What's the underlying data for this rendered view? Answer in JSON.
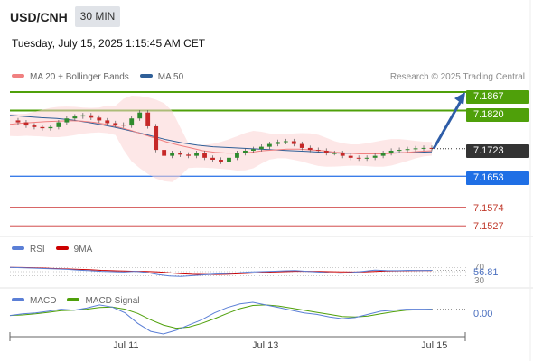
{
  "header": {
    "symbol": "USD/CNH",
    "timeframe": "30 MIN",
    "datetime": "Tuesday, July 15, 2025 1:15:45 AM CET"
  },
  "legend": {
    "ma20_bb_label": "MA 20 + Bollinger Bands",
    "ma20_bb_color": "#f08080",
    "ma50_label": "MA 50",
    "ma50_color": "#2f5f98"
  },
  "credit": "Research © 2025 Trading Central",
  "chart_data": {
    "type": "line",
    "price_range": [
      7.15,
      7.189
    ],
    "current_price": "7.1723",
    "levels": [
      {
        "value": "7.1867",
        "color": "#4fa00a",
        "kind": "target"
      },
      {
        "value": "7.1820",
        "color": "#4fa00a",
        "kind": "target"
      },
      {
        "value": "7.1653",
        "color": "#3b7de9",
        "kind": "pivot"
      },
      {
        "value": "7.1574",
        "color": "#cc3333",
        "kind": "support"
      },
      {
        "value": "7.1527",
        "color": "#cc3333",
        "kind": "support"
      }
    ],
    "x_ticks": [
      "Jul 11",
      "Jul 13",
      "Jul 15"
    ],
    "price_closes": [
      7.1795,
      7.179,
      7.1782,
      7.1778,
      7.1775,
      7.1778,
      7.179,
      7.18,
      7.1805,
      7.1808,
      7.1802,
      7.1795,
      7.1788,
      7.1784,
      7.1782,
      7.18,
      7.1815,
      7.178,
      7.172,
      7.1705,
      7.1712,
      7.1708,
      7.1705,
      7.1712,
      7.17,
      7.1695,
      7.169,
      7.17,
      7.1712,
      7.1718,
      7.1722,
      7.1728,
      7.1735,
      7.174,
      7.1742,
      7.1735,
      7.1725,
      7.172,
      7.1718,
      7.1712,
      7.1712,
      7.1705,
      7.17,
      7.1698,
      7.17,
      7.1705,
      7.1712,
      7.1718,
      7.172,
      7.1722,
      7.1724,
      7.1725,
      7.1723
    ],
    "ma20": [
      7.1785,
      7.1788,
      7.179,
      7.1792,
      7.1793,
      7.1794,
      7.1793,
      7.179,
      7.1785,
      7.1778,
      7.177,
      7.176,
      7.175,
      7.174,
      7.1732,
      7.1725,
      7.1718,
      7.1714,
      7.1712,
      7.1712,
      7.1714,
      7.1718,
      7.172,
      7.1722,
      7.1722,
      7.172,
      7.1718,
      7.1714,
      7.1712,
      7.171,
      7.171,
      7.171,
      7.1712,
      7.1714,
      7.1716,
      7.1718
    ],
    "ma50": [
      7.1808,
      7.1805,
      7.1802,
      7.18,
      7.1796,
      7.179,
      7.1783,
      7.1775,
      7.1766,
      7.1756,
      7.1746,
      7.1738,
      7.1732,
      7.1728,
      7.1726,
      7.1724,
      7.1722,
      7.172,
      7.1718,
      7.1716,
      7.1714,
      7.1712,
      7.1711,
      7.1711,
      7.1712,
      7.1713,
      7.1714,
      7.1715
    ],
    "rsi": {
      "label": "RSI",
      "color": "#5b7fd6",
      "ma_label": "9MA",
      "ma_color": "#cc0000",
      "current_value": "56.81",
      "levels": [
        "70",
        "30"
      ],
      "values": [
        72,
        70,
        68,
        66,
        64,
        62,
        58,
        55,
        52,
        50,
        48,
        52,
        46,
        35,
        28,
        26,
        30,
        34,
        38,
        40,
        44,
        48,
        50,
        52,
        54,
        56,
        52,
        48,
        44,
        42,
        46,
        52,
        58,
        56,
        55,
        57,
        56,
        56.81
      ],
      "ma_values": [
        72,
        71,
        70,
        68,
        66,
        64,
        62,
        60,
        57,
        55,
        53,
        52,
        51,
        49,
        44,
        40,
        37,
        36,
        36,
        37,
        39,
        42,
        45,
        48,
        50,
        52,
        52,
        51,
        50,
        49,
        48,
        49,
        51,
        53,
        54,
        55,
        56,
        56
      ]
    },
    "macd": {
      "label": "MACD",
      "color": "#5b7fd6",
      "signal_label": "MACD Signal",
      "signal_color": "#4fa00a",
      "current_value": "0.00",
      "values": [
        0.0,
        0.0003,
        0.0005,
        0.0008,
        0.0012,
        0.001,
        0.0014,
        0.002,
        0.0016,
        0.0005,
        -0.0015,
        -0.003,
        -0.0035,
        -0.0028,
        -0.0018,
        -0.0008,
        0.0005,
        0.0015,
        0.0022,
        0.0025,
        0.002,
        0.0015,
        0.001,
        0.0005,
        0.0002,
        -0.0003,
        -0.0006,
        -0.0004,
        0.0002,
        0.0008,
        0.001,
        0.0012,
        0.0012,
        0.0012
      ],
      "signal_values": [
        0.0,
        0.0001,
        0.0003,
        0.0006,
        0.0009,
        0.001,
        0.0012,
        0.0015,
        0.0016,
        0.0012,
        0.0004,
        -0.0008,
        -0.0018,
        -0.0024,
        -0.0022,
        -0.0015,
        -0.0006,
        0.0004,
        0.0013,
        0.0019,
        0.002,
        0.0018,
        0.0014,
        0.001,
        0.0006,
        0.0002,
        -0.0002,
        -0.0003,
        -0.0001,
        0.0003,
        0.0007,
        0.001,
        0.0011,
        0.0012
      ]
    }
  }
}
